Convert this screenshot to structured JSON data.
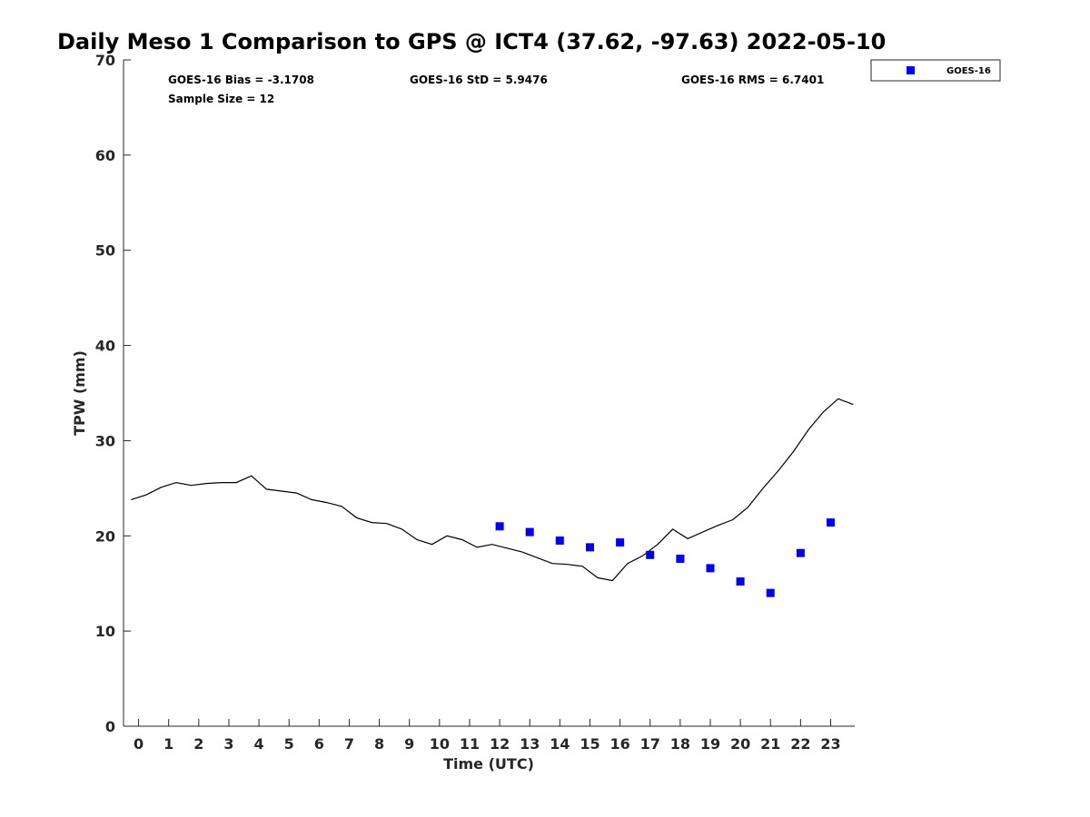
{
  "colors": {
    "marker": "#0000ee",
    "line": "#000000",
    "axis": "#262626"
  },
  "chart_data": {
    "type": "line",
    "title": "Daily Meso 1 Comparison to GPS @ ICT4 (37.62, -97.63) 2022-05-10",
    "xlabel": "Time (UTC)",
    "ylabel": "TPW (mm)",
    "xlim": [
      -0.5,
      23.8
    ],
    "ylim": [
      0,
      70
    ],
    "x_ticks": [
      0,
      1,
      2,
      3,
      4,
      5,
      6,
      7,
      8,
      9,
      10,
      11,
      12,
      13,
      14,
      15,
      16,
      17,
      18,
      19,
      20,
      21,
      22,
      23
    ],
    "y_ticks": [
      0,
      10,
      20,
      30,
      40,
      50,
      60,
      70
    ],
    "grid": false,
    "legend_position": "top-right-outside",
    "stats": {
      "bias": "GOES-16 Bias = -3.1708",
      "std": "GOES-16 StD = 5.9476",
      "rms": "GOES-16 RMS = 6.7401",
      "sample": "Sample Size = 12"
    },
    "series": [
      {
        "kind": "line",
        "x": [
          -0.25,
          0.25,
          0.75,
          1.25,
          1.75,
          2.25,
          2.75,
          3.25,
          3.75,
          4.25,
          4.75,
          5.25,
          5.75,
          6.25,
          6.75,
          7.25,
          7.75,
          8.25,
          8.75,
          9.25,
          9.75,
          10.25,
          10.75,
          11.25,
          11.75,
          12.25,
          12.75,
          13.25,
          13.75,
          14.25,
          14.75,
          15.25,
          15.75,
          16.25,
          16.75,
          17.25,
          17.75,
          18.25,
          18.75,
          19.25,
          19.75,
          20.25,
          20.75,
          21.25,
          21.75,
          22.25,
          22.75,
          23.25,
          23.75
        ],
        "values": [
          23.8,
          24.3,
          25.1,
          25.6,
          25.3,
          25.5,
          25.6,
          25.6,
          26.3,
          24.9,
          24.7,
          24.5,
          23.8,
          23.5,
          23.1,
          21.9,
          21.4,
          21.3,
          20.7,
          19.6,
          19.1,
          20.0,
          19.6,
          18.8,
          19.1,
          18.7,
          18.3,
          17.7,
          17.1,
          17.0,
          16.8,
          15.6,
          15.3,
          17.1,
          17.9,
          19.1,
          20.7,
          19.7,
          20.4,
          21.1,
          21.7,
          23.0,
          25.0,
          26.8,
          28.8,
          31.1,
          33.0,
          34.4,
          33.8
        ]
      },
      {
        "name": "GOES-16",
        "kind": "scatter",
        "x": [
          12,
          13,
          14,
          15,
          16,
          17,
          18,
          19,
          20,
          21,
          22,
          23
        ],
        "values": [
          21.0,
          20.4,
          19.5,
          18.8,
          19.3,
          18.0,
          17.6,
          16.6,
          15.2,
          14.0,
          18.2,
          21.4
        ]
      }
    ]
  }
}
